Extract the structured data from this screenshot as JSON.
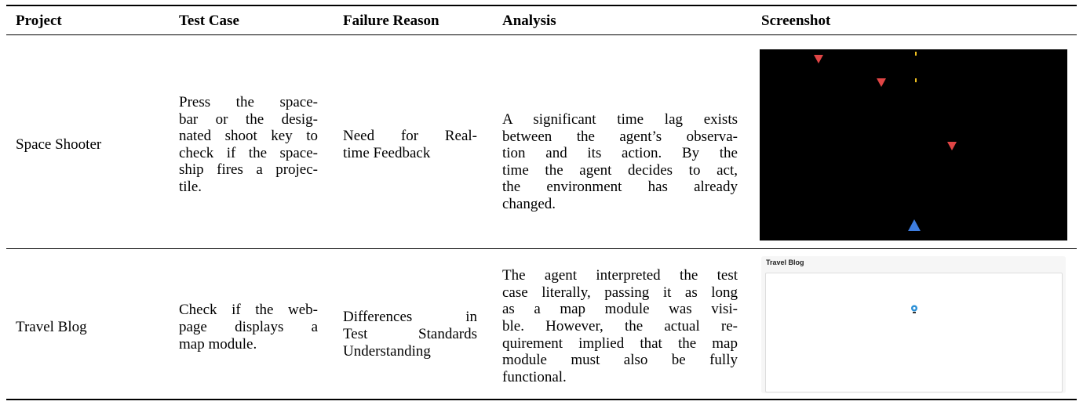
{
  "table": {
    "header": [
      "Project",
      "Test Case",
      "Failure Reason",
      "Analysis",
      "Screenshot"
    ],
    "rows": [
      {
        "project": "Space Shooter",
        "test_case": [
          "Press the space-",
          "bar or the desig-",
          "nated shoot key to",
          "check if the space-",
          "ship fires a projec-",
          "tile."
        ],
        "failure_reason": [
          "Need for Real-",
          "time Feedback"
        ],
        "analysis": [
          "A significant time lag exists",
          "between the agent’s observa-",
          "tion and its action. By the",
          "time the agent decides to act,",
          "the environment has already",
          "changed."
        ]
      },
      {
        "project": "Travel Blog",
        "test_case": [
          "Check if the web-",
          "page displays a",
          "map module."
        ],
        "failure_reason": [
          "Differences in",
          "Test Standards",
          "Understanding"
        ],
        "analysis": [
          "The agent interpreted the test",
          "case literally, passing it as long",
          "as a map module was visi-",
          "ble. However, the actual re-",
          "quirement implied that the map",
          "module must also be fully",
          "functional."
        ],
        "screenshot_title": "Travel Blog"
      }
    ]
  }
}
